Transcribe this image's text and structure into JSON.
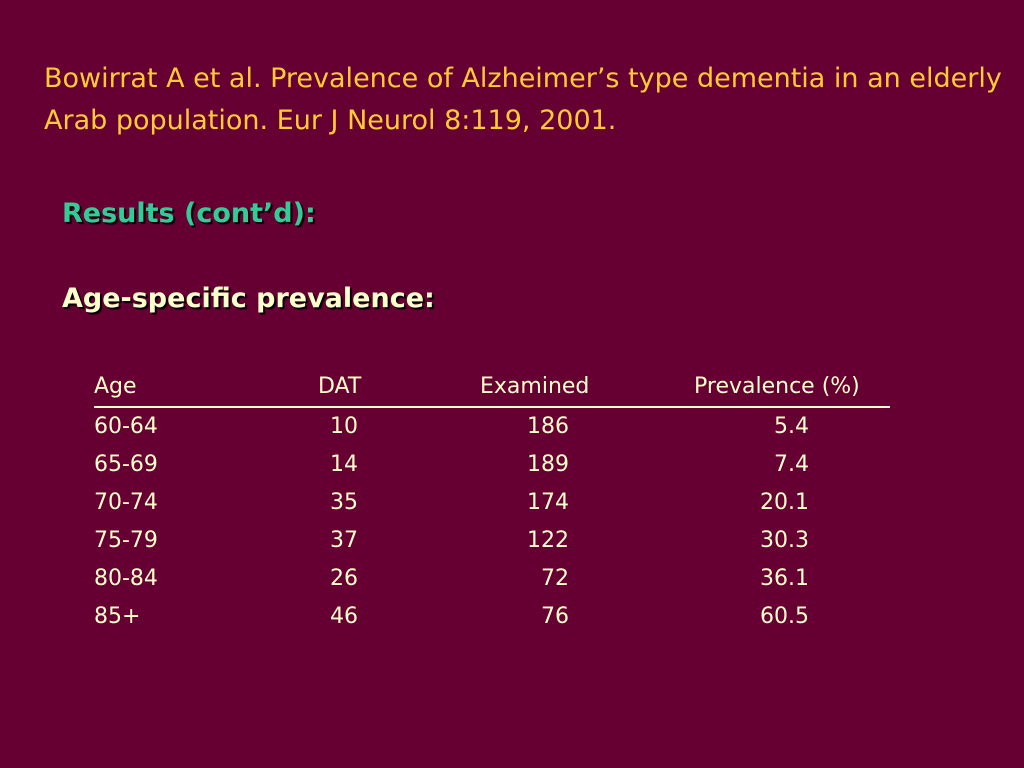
{
  "citation": "Bowirrat A et al. Prevalence of Alzheimer’s type dementia in an elderly Arab population. Eur J Neurol 8:119, 2001.",
  "results_heading": "Results (cont’d):",
  "subheading": "Age-specific prevalence:",
  "table": {
    "headers": {
      "age": "Age",
      "dat": "DAT",
      "examined": "Examined",
      "prevalence": "Prevalence (%)"
    },
    "rows": [
      {
        "age": "60-64",
        "dat": "10",
        "examined": "186",
        "prevalence": "5.4"
      },
      {
        "age": "65-69",
        "dat": "14",
        "examined": "189",
        "prevalence": "7.4"
      },
      {
        "age": "70-74",
        "dat": "35",
        "examined": "174",
        "prevalence": "20.1"
      },
      {
        "age": "75-79",
        "dat": "37",
        "examined": "122",
        "prevalence": "30.3"
      },
      {
        "age": "80-84",
        "dat": "26",
        "examined": "72",
        "prevalence": "36.1"
      },
      {
        "age": "85+",
        "dat": "46",
        "examined": "76",
        "prevalence": "60.5"
      }
    ]
  },
  "colors": {
    "background": "#660033",
    "citation": "#ffcc33",
    "heading": "#33cc99",
    "body_text": "#ffffcc"
  }
}
